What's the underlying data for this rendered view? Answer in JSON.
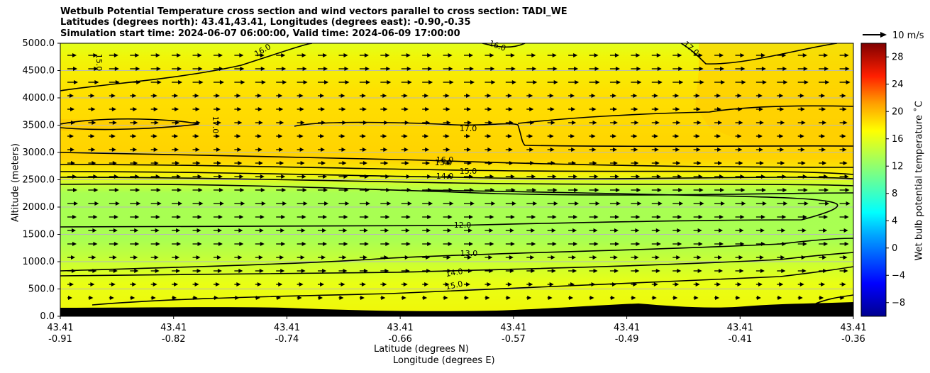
{
  "chart_data": {
    "type": "contour",
    "title_lines": [
      "Wetbulb Potential Temperature cross section and wind vectors parallel to cross section: TADI_WE",
      "Latitudes (degrees north): 43.41,43.41, Longitudes (degrees east): -0.90,-0.35",
      "Simulation start time: 2024-06-07 06:00:00, Valid time: 2024-06-09 17:00:00"
    ],
    "ylabel": "Altitude (meters)",
    "xlabel_lines": [
      "Latitude (degrees N)",
      "Longitude (degrees E)"
    ],
    "ylim": [
      0,
      5000
    ],
    "yticks": [
      "0.0",
      "500.0",
      "1000.0",
      "1500.0",
      "2000.0",
      "2500.0",
      "3000.0",
      "3500.0",
      "4000.0",
      "4500.0",
      "5000.0"
    ],
    "xticks": [
      {
        "lat": "43.41",
        "lon": "-0.91"
      },
      {
        "lat": "43.41",
        "lon": "-0.82"
      },
      {
        "lat": "43.41",
        "lon": "-0.74"
      },
      {
        "lat": "43.41",
        "lon": "-0.66"
      },
      {
        "lat": "43.41",
        "lon": "-0.57"
      },
      {
        "lat": "43.41",
        "lon": "-0.49"
      },
      {
        "lat": "43.41",
        "lon": "-0.41"
      },
      {
        "lat": "43.41",
        "lon": "-0.36"
      }
    ],
    "colorbar": {
      "label": "Wet bulb potential temperature $^\\circ$C",
      "label_display": "Wet bulb potential temperature ˚C",
      "range": [
        -10,
        30
      ],
      "ticks": [
        "28",
        "24",
        "20",
        "16",
        "12",
        "8",
        "4",
        "0",
        "−4",
        "−8"
      ]
    },
    "quiver_reference": {
      "label": "10 m/s",
      "speed": 10
    },
    "contour_labels": [
      "12.0",
      "13.0",
      "13.0",
      "14.0",
      "14.0",
      "15.0",
      "15.0",
      "15.0",
      "16.0",
      "16.0",
      "17.0",
      "17.0",
      "17.0",
      "16.0"
    ],
    "grid": true
  }
}
